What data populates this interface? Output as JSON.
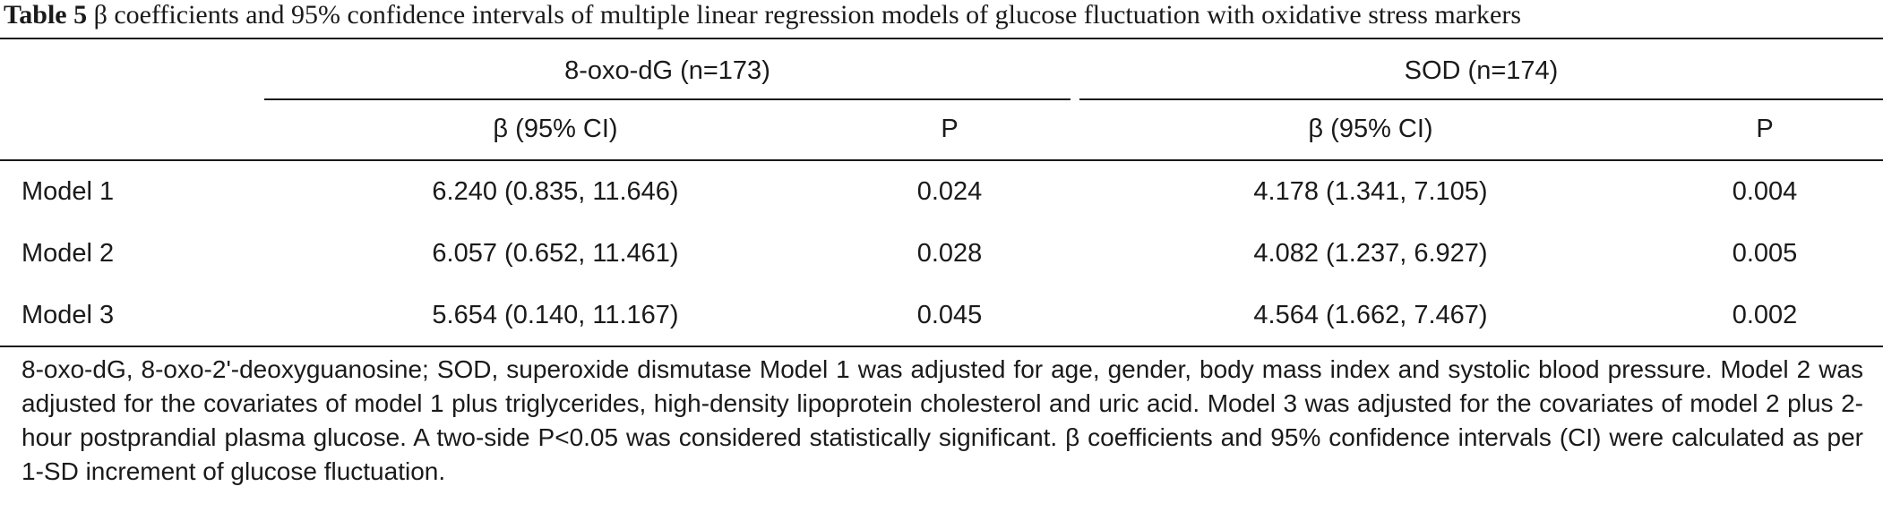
{
  "table": {
    "caption_label": "Table 5",
    "caption_text": " β coefficients and 95% confidence intervals of multiple linear regression models of glucose fluctuation with oxidative stress markers",
    "group_headers": [
      "8-oxo-dG (n=173)",
      "SOD (n=174)"
    ],
    "sub_headers": [
      "β (95% CI)",
      "P",
      "β (95% CI)",
      "P"
    ],
    "rows": [
      {
        "label": "Model 1",
        "cells": [
          "6.240 (0.835, 11.646)",
          "0.024",
          "4.178 (1.341, 7.105)",
          "0.004"
        ]
      },
      {
        "label": "Model 2",
        "cells": [
          "6.057 (0.652, 11.461)",
          "0.028",
          "4.082 (1.237, 6.927)",
          "0.005"
        ]
      },
      {
        "label": "Model 3",
        "cells": [
          "5.654 (0.140, 11.167)",
          "0.045",
          "4.564 (1.662, 7.467)",
          "0.002"
        ]
      }
    ],
    "footnote": "8-oxo-dG, 8-oxo-2'-deoxyguanosine; SOD, superoxide dismutase Model 1 was adjusted for age, gender, body mass index and systolic blood pressure. Model 2 was adjusted for the covariates of model 1 plus triglycerides, high-density lipoprotein cholesterol and uric acid. Model 3 was adjusted for the covariates of model 2 plus 2-hour postprandial plasma glucose. A two-side P<0.05 was considered statistically significant. β coefficients and 95% confidence intervals (CI) were calculated as per 1-SD increment of glucose fluctuation."
  }
}
